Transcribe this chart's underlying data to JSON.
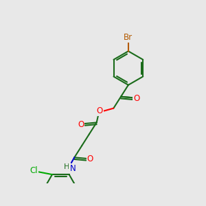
{
  "background_color": "#e8e8e8",
  "bond_color": "#1a6b1a",
  "bond_lw": 1.5,
  "atom_colors": {
    "Br": "#b35a00",
    "Cl": "#00aa00",
    "O": "#ff0000",
    "N": "#0000cc",
    "C": "#1a6b1a",
    "H": "#1a6b1a"
  },
  "font_size": 8.5,
  "figsize": [
    3.0,
    3.0
  ],
  "dpi": 100
}
